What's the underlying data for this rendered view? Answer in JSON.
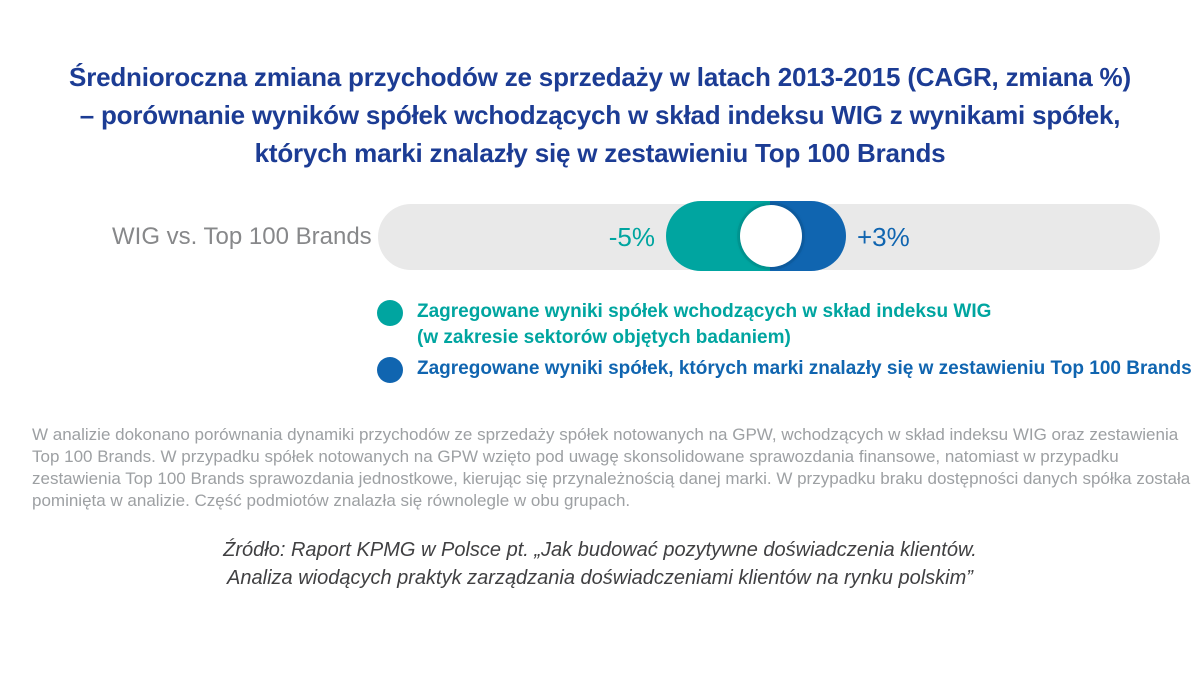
{
  "title": {
    "line1": "Średnioroczna zmiana przychodów ze sprzedaży w latach 2013-2015 (CAGR, zmiana %)",
    "line2": "– porównanie wyników spółek wchodzących w skład indeksu WIG z wynikami spółek,",
    "line3": "których marki znalazły się w zestawieniu Top 100 Brands"
  },
  "slider": {
    "label": "WIG vs. Top 100 Brands",
    "left_value": "-5%",
    "right_value": "+3%"
  },
  "legend": {
    "items": [
      {
        "color": "#00a5a0",
        "line1": "Zagregowane wyniki spółek wchodzących w skład indeksu WIG",
        "line2": "(w zakresie sektorów objętych badaniem)"
      },
      {
        "color": "#1065b0",
        "line1": "Zagregowane wyniki spółek, których marki znalazły się w zestawieniu Top 100 Brands"
      }
    ]
  },
  "note": {
    "lines": [
      "W analizie dokonano porównania dynamiki przychodów ze sprzedaży spółek notowanych na GPW, wchodzących w skład indeksu WIG oraz zestawienia",
      "Top 100 Brands. W przypadku spółek notowanych na GPW wzięto pod uwagę skonsolidowane sprawozdania finansowe, natomiast w przypadku",
      "zestawienia Top 100 Brands sprawozdania jednostkowe, kierując się przynależnością danej marki. W przypadku braku dostępności danych spółka została",
      "pominięta w analizie. Część podmiotów znalazła się równolegle w obu grupach."
    ]
  },
  "source": {
    "lines": [
      "Źródło: Raport KPMG w Polsce pt. „Jak budować pozytywne doświadczenia klientów.",
      "Analiza wiodących praktyk zarządzania doświadczeniami klientów na rynku polskim”"
    ]
  },
  "colors": {
    "title_navy": "#1c3c94",
    "teal": "#00a5a0",
    "blue": "#1065b0",
    "track_gray": "#e9e9e9",
    "label_gray": "#87888a",
    "note_gray": "#9da0a3",
    "source_dark": "#404042"
  },
  "chart_data": {
    "type": "bar",
    "title": "Średnioroczna zmiana przychodów ze sprzedaży w latach 2013-2015 (CAGR, zmiana %)",
    "categories": [
      "Zagregowane wyniki spółek wchodzących w skład indeksu WIG (w zakresie sektorów objętych badaniem)",
      "Zagregowane wyniki spółek, których marki znalazły się w zestawieniu Top 100 Brands"
    ],
    "values": [
      -5,
      3
    ],
    "value_labels": [
      "-5%",
      "+3%"
    ],
    "unit": "%",
    "series_colors": [
      "#00a5a0",
      "#1065b0"
    ],
    "row_label": "WIG vs. Top 100 Brands",
    "legend_position": "below-chart"
  }
}
